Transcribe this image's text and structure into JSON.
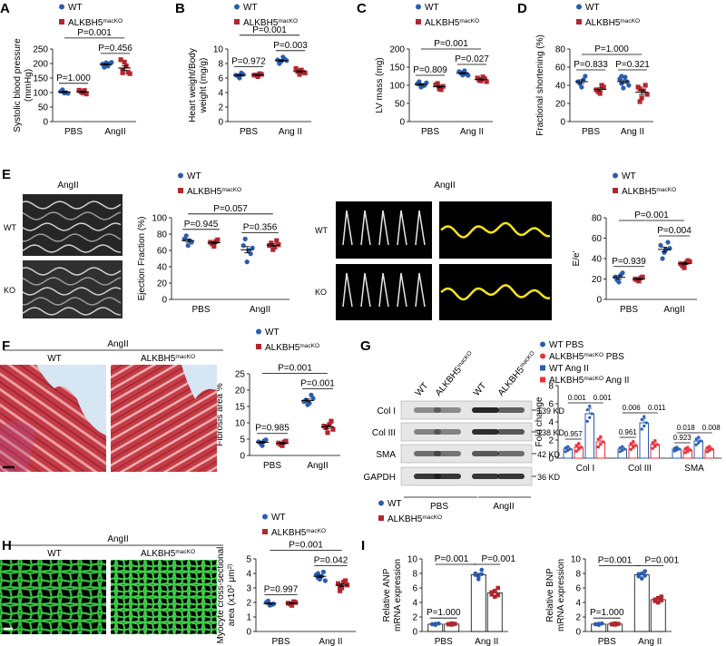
{
  "colors": {
    "wt": "#2a5db0",
    "ko": "#b3262d",
    "wt_g": "#2a5db0",
    "ko_g": "#e8333b"
  },
  "panels": [
    {
      "id": "A",
      "letter": "A",
      "legend": [
        "WT",
        "ALKBH5^macKO"
      ],
      "ylabel": [
        "Systolic blood pressure",
        "(mmHg)"
      ],
      "ylim": [
        0,
        250
      ],
      "yticks": [
        0,
        50,
        100,
        150,
        200,
        250
      ],
      "groups": [
        "PBS",
        "AngII"
      ],
      "data": [
        [
          [
            104,
            98,
            97,
            110,
            100
          ],
          [
            108,
            99,
            95,
            103,
            107
          ]
        ],
        [
          [
            198,
            203,
            200,
            187,
            191,
            204,
            195
          ],
          [
            213,
            205,
            170,
            178,
            192,
            165,
            168
          ]
        ]
      ],
      "pvals": [
        {
          "label": "P=1.000",
          "type": "pair",
          "group": 0,
          "level": 0
        },
        {
          "label": "P=0.456",
          "type": "pair",
          "group": 1,
          "level": 0
        },
        {
          "label": "P=0.001",
          "type": "span",
          "level": 1
        }
      ]
    },
    {
      "id": "B",
      "letter": "B",
      "legend": [
        "WT",
        "ALKBH5^macKO"
      ],
      "ylabel": [
        "Heart weight/Body",
        "weight (mg/g)"
      ],
      "ylim": [
        0,
        10
      ],
      "yticks": [
        0,
        2,
        4,
        6,
        8,
        10
      ],
      "groups": [
        "PBS",
        "Ang II"
      ],
      "data": [
        [
          [
            6.4,
            6.0,
            6.5,
            6.3,
            6.7
          ],
          [
            6.4,
            6.2,
            6.5,
            6.4,
            6.6
          ]
        ],
        [
          [
            8.5,
            8.3,
            8.6,
            8.0,
            8.9,
            8.4,
            8.1
          ],
          [
            7.3,
            6.5,
            6.8,
            7.0,
            7.1,
            6.7,
            6.9
          ]
        ]
      ],
      "pvals": [
        {
          "label": "P=0.972",
          "type": "pair",
          "group": 0,
          "level": 0
        },
        {
          "label": "P=0.003",
          "type": "pair",
          "group": 1,
          "level": 0
        },
        {
          "label": "P=0.001",
          "type": "span",
          "level": 1
        }
      ]
    },
    {
      "id": "C",
      "letter": "C",
      "legend": [
        "WT",
        "ALKBH5^macKO"
      ],
      "ylabel": [
        "LV mass (mg)"
      ],
      "ylim": [
        0,
        200
      ],
      "yticks": [
        0,
        50,
        100,
        150,
        200
      ],
      "groups": [
        "PBS",
        "Ang II"
      ],
      "data": [
        [
          [
            104,
            95,
            100,
            110,
            98,
            107
          ],
          [
            101,
            90,
            97,
            105,
            88
          ]
        ],
        [
          [
            138,
            128,
            131,
            135,
            140,
            127,
            133
          ],
          [
            120,
            112,
            118,
            114,
            123,
            110,
            116
          ]
        ]
      ],
      "pvals": [
        {
          "label": "P=0.809",
          "type": "pair",
          "group": 0,
          "level": 0
        },
        {
          "label": "P=0.027",
          "type": "pair",
          "group": 1,
          "level": 0
        },
        {
          "label": "P=0.001",
          "type": "span",
          "level": 1
        }
      ]
    },
    {
      "id": "D",
      "letter": "D",
      "legend": [
        "WT",
        "ALKBH5^macKO"
      ],
      "ylabel": [
        "Fractional shortening (%)"
      ],
      "ylim": [
        0,
        80
      ],
      "yticks": [
        0,
        20,
        40,
        60,
        80
      ],
      "groups": [
        "PBS",
        "Ang II"
      ],
      "data": [
        [
          [
            44,
            38,
            50,
            42,
            46
          ],
          [
            35,
            31,
            38,
            33,
            40
          ]
        ],
        [
          [
            47,
            37,
            44,
            50,
            49,
            40,
            42
          ],
          [
            38,
            26,
            40,
            22,
            34,
            30,
            36
          ]
        ]
      ],
      "pvals": [
        {
          "label": "P=0.833",
          "type": "pair",
          "group": 0,
          "level": 0
        },
        {
          "label": "P=0.321",
          "type": "pair",
          "group": 1,
          "level": 0
        },
        {
          "label": "P=1.000",
          "type": "span",
          "level": 1
        }
      ]
    },
    {
      "id": "E1",
      "letter": "E",
      "legend": [
        "WT",
        "ALKBH5^macKO"
      ],
      "ylabel": [
        "Ejection Fraction (%)"
      ],
      "ylim": [
        0,
        100
      ],
      "yticks": [
        0,
        20,
        40,
        60,
        80,
        100
      ],
      "groups": [
        "PBS",
        "AngII"
      ],
      "data": [
        [
          [
            74,
            66,
            70,
            78,
            72
          ],
          [
            70,
            65,
            73,
            68,
            71
          ]
        ],
        [
          [
            66,
            46,
            56,
            74,
            60,
            63
          ],
          [
            66,
            61,
            72,
            69,
            64,
            67
          ]
        ]
      ],
      "pvals": [
        {
          "label": "P=0.945",
          "type": "pair",
          "group": 0,
          "level": 0
        },
        {
          "label": "P=0.356",
          "type": "pair",
          "group": 1,
          "level": 0
        },
        {
          "label": "P=0.057",
          "type": "span",
          "level": 1
        }
      ]
    },
    {
      "id": "E2",
      "letter": "",
      "legend": [
        "WT",
        "ALKBH5^macKO"
      ],
      "ylabel": [
        "E/e'"
      ],
      "ylim": [
        0,
        80
      ],
      "yticks": [
        0,
        20,
        40,
        60,
        80
      ],
      "groups": [
        "PBS",
        "AngII"
      ],
      "data": [
        [
          [
            22,
            17,
            26,
            19,
            24
          ],
          [
            20,
            18,
            22,
            19,
            21
          ]
        ],
        [
          [
            53,
            46,
            56,
            40,
            49,
            50
          ],
          [
            35,
            31,
            38,
            33,
            36,
            37
          ]
        ]
      ],
      "pvals": [
        {
          "label": "P=0.939",
          "type": "pair",
          "group": 0,
          "level": 0
        },
        {
          "label": "P=0.004",
          "type": "pair",
          "group": 1,
          "level": 0
        },
        {
          "label": "P=0.001",
          "type": "span",
          "level": 1
        }
      ]
    },
    {
      "id": "F",
      "letter": "",
      "legend": [
        "WT",
        "ALKBH5^macKO"
      ],
      "ylabel": [
        "Fibrosis area %"
      ],
      "ylim": [
        0,
        25
      ],
      "yticks": [
        0,
        5,
        10,
        15,
        20,
        25
      ],
      "groups": [
        "PBS",
        "AngII"
      ],
      "data": [
        [
          [
            4.2,
            3.0,
            4.8,
            3.7,
            4.5
          ],
          [
            3.8,
            3.0,
            4.4,
            3.4,
            4.1
          ]
        ],
        [
          [
            16.5,
            15.5,
            18.5,
            17.0,
            16.0,
            17.5
          ],
          [
            9.0,
            7.0,
            10.5,
            8.5,
            9.5,
            8.0
          ]
        ]
      ],
      "pvals": [
        {
          "label": "P=0.985",
          "type": "pair",
          "group": 0,
          "level": 0
        },
        {
          "label": "P=0.001",
          "type": "pair",
          "group": 1,
          "level": 0
        },
        {
          "label": "P=0.001",
          "type": "span",
          "level": 1
        }
      ]
    },
    {
      "id": "H",
      "letter": "",
      "legend": [
        "WT",
        "ALKBH5^macKO"
      ],
      "ylabel": [
        "Myocyte cross-sectional",
        "area (x10^2 μm^2)"
      ],
      "ylim": [
        0,
        5
      ],
      "yticks": [
        0,
        1,
        2,
        3,
        4,
        5
      ],
      "groups": [
        "PBS",
        "Ang II"
      ],
      "data": [
        [
          [
            2.0,
            1.8,
            1.9,
            2.1,
            1.85
          ],
          [
            1.95,
            1.8,
            2.0,
            1.9,
            2.05
          ]
        ],
        [
          [
            3.9,
            3.6,
            4.1,
            3.7,
            3.8,
            3.5,
            4.0
          ],
          [
            3.3,
            3.0,
            3.5,
            2.8,
            3.4,
            3.2,
            3.1
          ]
        ]
      ],
      "pvals": [
        {
          "label": "P=0.997",
          "type": "pair",
          "group": 0,
          "level": 0
        },
        {
          "label": "P=0.042",
          "type": "pair",
          "group": 1,
          "level": 0
        },
        {
          "label": "P=0.001",
          "type": "span",
          "level": 1
        }
      ]
    }
  ],
  "bar_panels": [
    {
      "id": "I1",
      "letter": "",
      "legend": [
        "WT",
        "ALKBH5^macKO"
      ],
      "ylabel": [
        "Relative ANP",
        "mRNA expression"
      ],
      "ylim": [
        0,
        10
      ],
      "yticks": [
        0,
        2,
        4,
        6,
        8,
        10
      ],
      "groups": [
        "PBS",
        "Ang II"
      ],
      "data": [
        [
          [
            1.0,
            0.9,
            1.1,
            1.0,
            1.05
          ],
          [
            1.0,
            0.95,
            1.05,
            1.0,
            1.1
          ]
        ],
        [
          [
            7.8,
            7.2,
            8.5,
            8.0,
            7.5,
            7.9
          ],
          [
            5.4,
            4.8,
            6.0,
            5.1,
            5.6,
            5.0
          ]
        ]
      ],
      "pvals": [
        {
          "label": "P=1.000",
          "type": "pair",
          "group": 0,
          "level": 0
        },
        {
          "label": "P=0.001",
          "type": "pair",
          "group": 1,
          "level": 0
        },
        {
          "label": "P=0.001",
          "type": "span",
          "level": 0
        }
      ]
    },
    {
      "id": "I2",
      "letter": "",
      "legend": [],
      "ylabel": [
        "Relative BNP",
        "mRNA expression"
      ],
      "ylim": [
        0,
        10
      ],
      "yticks": [
        0,
        2,
        4,
        6,
        8,
        10
      ],
      "groups": [
        "PBS",
        "Ang II"
      ],
      "data": [
        [
          [
            1.0,
            0.9,
            1.1,
            1.0,
            1.05
          ],
          [
            1.0,
            0.95,
            1.05,
            1.0,
            1.1
          ]
        ],
        [
          [
            7.9,
            7.3,
            8.3,
            7.6,
            8.0,
            7.7
          ],
          [
            4.4,
            4.0,
            4.8,
            4.2,
            4.6,
            4.3
          ]
        ]
      ],
      "pvals": [
        {
          "label": "P=1.000",
          "type": "pair",
          "group": 0,
          "level": 0
        },
        {
          "label": "P=0.001",
          "type": "pair",
          "group": 1,
          "level": 0
        },
        {
          "label": "P=0.001",
          "type": "span",
          "level": 0
        }
      ]
    }
  ],
  "panel_g_chart": {
    "id": "G",
    "legend": [
      "WT PBS",
      "ALKBH5^macKO PBS",
      "WT Ang II",
      "ALKBH5^macKO Ang II"
    ],
    "ylabel": "Fold change",
    "ylim": [
      0,
      8
    ],
    "yticks": [
      0,
      2,
      4,
      6,
      8
    ],
    "groups": [
      "Col I",
      "Col III",
      "SMA"
    ],
    "means": [
      [
        1.0,
        1.2,
        4.9,
        1.8
      ],
      [
        1.0,
        1.4,
        3.9,
        1.5
      ],
      [
        1.0,
        0.9,
        1.9,
        1.0
      ]
    ],
    "errors": [
      [
        0.2,
        0.3,
        0.6,
        0.4
      ],
      [
        0.2,
        0.3,
        0.5,
        0.3
      ],
      [
        0.15,
        0.2,
        0.3,
        0.2
      ]
    ],
    "pvals": [
      [
        "0.957",
        "0.001",
        "0.001"
      ],
      [
        "0.961",
        "0.006",
        "0.011"
      ],
      [
        "0.923",
        "0.018",
        "0.008"
      ]
    ]
  },
  "western": {
    "col_labels": [
      "WT",
      "ALKBH5^macKO",
      "WT",
      "ALKBH5^macKO"
    ],
    "rows": [
      {
        "name": "Col I",
        "kd": "139 KD"
      },
      {
        "name": "Col III",
        "kd": "138 KD"
      },
      {
        "name": "SMA",
        "kd": "42 KD"
      },
      {
        "name": "GAPDH",
        "kd": "36 KD"
      }
    ],
    "groups": [
      "PBS",
      "AngII"
    ],
    "letter": "G"
  },
  "echo_e": {
    "title": "AngII",
    "rows": [
      "WT",
      "KO"
    ]
  },
  "doppler_e": {
    "title": "AngII",
    "rows": [
      "WT",
      "KO"
    ]
  },
  "histology_f": {
    "letter": "F",
    "title": "AngII",
    "cols": [
      "WT",
      "ALKBH5^macKO"
    ]
  },
  "histology_h": {
    "letter": "H",
    "title": "AngII",
    "cols": [
      "WT",
      "ALKBH5^macKO"
    ]
  },
  "panel_i_letter": "I"
}
